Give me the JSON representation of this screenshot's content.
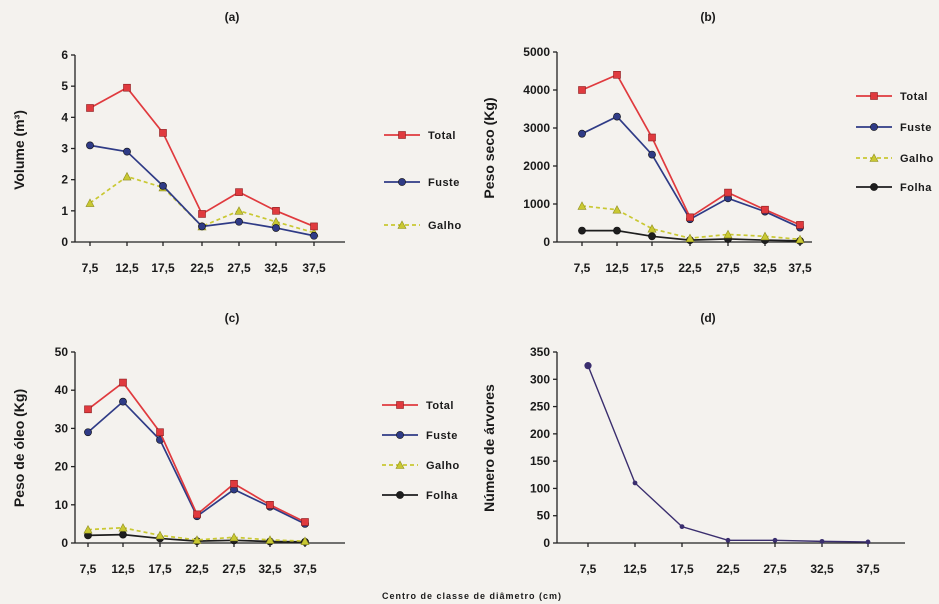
{
  "figure": {
    "xlabel": "Centro de classe de diâmetro (cm)"
  },
  "colors": {
    "Total": "#e03a3e",
    "Fuste": "#2f3b86",
    "Galho": "#c9c832",
    "Folha": "#1e1e1e",
    "Número": "#2f3b86"
  },
  "chart_data": [
    {
      "type": "line",
      "title": "(a)",
      "xlabel": "",
      "ylabel": "Volume (m³)",
      "categories": [
        "7,5",
        "12,5",
        "17,5",
        "22,5",
        "27,5",
        "32,5",
        "37,5"
      ],
      "ylim": [
        0,
        6
      ],
      "yticks": [
        0,
        1,
        2,
        3,
        4,
        5,
        6
      ],
      "grid": false,
      "legend": "right",
      "series": [
        {
          "name": "Total",
          "values": [
            4.3,
            4.95,
            3.5,
            0.9,
            1.6,
            1.0,
            0.5
          ]
        },
        {
          "name": "Fuste",
          "values": [
            3.1,
            2.9,
            1.8,
            0.5,
            0.65,
            0.45,
            0.2
          ]
        },
        {
          "name": "Galho",
          "values": [
            1.25,
            2.1,
            1.75,
            0.5,
            1.0,
            0.65,
            0.3
          ]
        }
      ]
    },
    {
      "type": "line",
      "title": "(b)",
      "xlabel": "",
      "ylabel": "Peso seco (Kg)",
      "categories": [
        "7,5",
        "12,5",
        "17,5",
        "22,5",
        "27,5",
        "32,5",
        "37,5"
      ],
      "ylim": [
        0,
        5000
      ],
      "yticks": [
        0,
        1000,
        2000,
        3000,
        4000,
        5000
      ],
      "grid": false,
      "legend": "right",
      "series": [
        {
          "name": "Total",
          "values": [
            4000,
            4400,
            2750,
            650,
            1300,
            850,
            450
          ]
        },
        {
          "name": "Fuste",
          "values": [
            2850,
            3300,
            2300,
            600,
            1150,
            800,
            380
          ]
        },
        {
          "name": "Galho",
          "values": [
            950,
            850,
            350,
            100,
            200,
            150,
            70
          ]
        },
        {
          "name": "Folha",
          "values": [
            300,
            300,
            150,
            50,
            80,
            50,
            30
          ]
        }
      ]
    },
    {
      "type": "line",
      "title": "(c)",
      "xlabel": "",
      "ylabel": "Peso de óleo (Kg)",
      "categories": [
        "7,5",
        "12,5",
        "17,5",
        "22,5",
        "27,5",
        "32,5",
        "37,5"
      ],
      "ylim": [
        0,
        50
      ],
      "yticks": [
        0,
        10,
        20,
        30,
        40,
        50
      ],
      "grid": false,
      "legend": "right",
      "series": [
        {
          "name": "Total",
          "values": [
            35,
            42,
            29,
            7.5,
            15.5,
            10,
            5.5
          ]
        },
        {
          "name": "Fuste",
          "values": [
            29,
            37,
            27,
            7,
            14,
            9.5,
            5
          ]
        },
        {
          "name": "Galho",
          "values": [
            3.5,
            4,
            2,
            0.8,
            1.5,
            0.8,
            0.5
          ]
        },
        {
          "name": "Folha",
          "values": [
            2,
            2.2,
            1.2,
            0.5,
            0.7,
            0.4,
            0.3
          ]
        }
      ]
    },
    {
      "type": "line",
      "title": "(d)",
      "xlabel": "",
      "ylabel": "Número de árvores",
      "categories": [
        "7,5",
        "12,5",
        "17,5",
        "22,5",
        "27,5",
        "32,5",
        "37,5"
      ],
      "ylim": [
        0,
        350
      ],
      "yticks": [
        0,
        50,
        100,
        150,
        200,
        250,
        300,
        350
      ],
      "grid": false,
      "legend": "none",
      "series": [
        {
          "values": [
            325,
            110,
            30,
            5,
            5,
            3,
            2
          ]
        }
      ]
    }
  ]
}
